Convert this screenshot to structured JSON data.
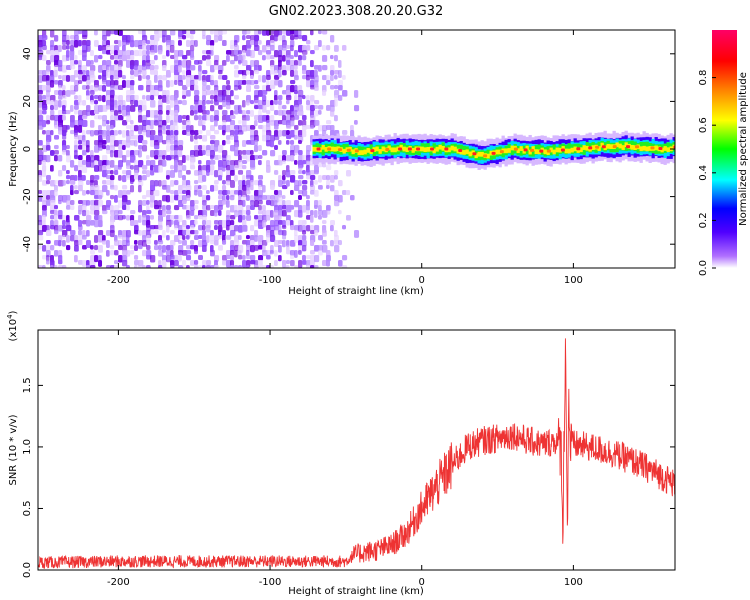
{
  "figure_title": "GN02.2023.308.20.20.G32",
  "colors": {
    "snr_line": "#ee3333",
    "scatter_purple": "#6a00e0",
    "axis": "#000000",
    "background": "#ffffff"
  },
  "chart_data": [
    {
      "id": "spectrogram",
      "type": "heatmap",
      "title": "GN02.2023.308.20.20.G32",
      "xlabel": "Height of straight line (km)",
      "ylabel": "Frequency (Hz)",
      "xlim": [
        -253,
        167
      ],
      "ylim": [
        -50,
        50
      ],
      "xticks": [
        -200,
        -100,
        0,
        100
      ],
      "xtick_labels": [
        "-200",
        "-100",
        "0",
        "100"
      ],
      "yticks": [
        40,
        20,
        0,
        -20,
        -40
      ],
      "ytick_labels": [
        "40",
        "20",
        "0",
        "-20",
        "-40"
      ],
      "colorbar": {
        "label": "Normalized spectral amplitude",
        "range": [
          0,
          1
        ],
        "ticks": [
          0.0,
          0.2,
          0.4,
          0.6,
          0.8
        ],
        "tick_labels": [
          "0.0",
          "0.2",
          "0.4",
          "0.6",
          "0.8"
        ],
        "colormap": [
          "#ffffff",
          "#7a00ff",
          "#0000ff",
          "#00ffff",
          "#00ff00",
          "#ffff00",
          "#ff8000",
          "#ff0000",
          "#ff0066"
        ]
      },
      "noise_region_x": [
        -253,
        -72
      ],
      "fading_region_x": [
        -72,
        -40
      ],
      "signal_track": {
        "x": [
          -72,
          -60,
          -40,
          -20,
          0,
          20,
          40,
          45,
          60,
          80,
          100,
          120,
          140,
          160,
          167
        ],
        "freq_hz": [
          0,
          0,
          -1,
          0,
          0,
          0,
          -3,
          -2,
          0,
          -1,
          0,
          1,
          1,
          0,
          1
        ]
      }
    },
    {
      "id": "snr",
      "type": "line",
      "title": "",
      "xlabel": "Height of straight line (km)",
      "ylabel": "SNR (10 * v/v)",
      "y_multiplier_label": "(x10",
      "y_multiplier_exp": "4",
      "y_multiplier_close": ")",
      "xlim": [
        -253,
        167
      ],
      "ylim": [
        0,
        1.95
      ],
      "xticks": [
        -200,
        -100,
        0,
        100
      ],
      "xtick_labels": [
        "-200",
        "-100",
        "0",
        "100"
      ],
      "yticks": [
        0.0,
        0.5,
        1.0,
        1.5
      ],
      "ytick_labels": [
        "0.0",
        "0.5",
        "1.0",
        "1.5"
      ],
      "series": [
        {
          "name": "SNR",
          "x": [
            -253,
            -200,
            -150,
            -100,
            -60,
            -50,
            -45,
            -40,
            -30,
            -20,
            -10,
            0,
            10,
            20,
            30,
            40,
            50,
            60,
            70,
            80,
            88,
            92,
            93,
            95,
            96,
            97,
            98,
            100,
            110,
            120,
            130,
            140,
            150,
            160,
            167
          ],
          "y": [
            0.06,
            0.07,
            0.07,
            0.07,
            0.07,
            0.07,
            0.12,
            0.14,
            0.16,
            0.2,
            0.3,
            0.5,
            0.68,
            0.85,
            1.0,
            1.05,
            1.07,
            1.1,
            1.05,
            1.02,
            1.05,
            1.0,
            0.35,
            1.9,
            0.3,
            1.4,
            1.0,
            1.02,
            1.0,
            0.97,
            0.93,
            0.88,
            0.82,
            0.75,
            0.7
          ]
        }
      ]
    }
  ]
}
